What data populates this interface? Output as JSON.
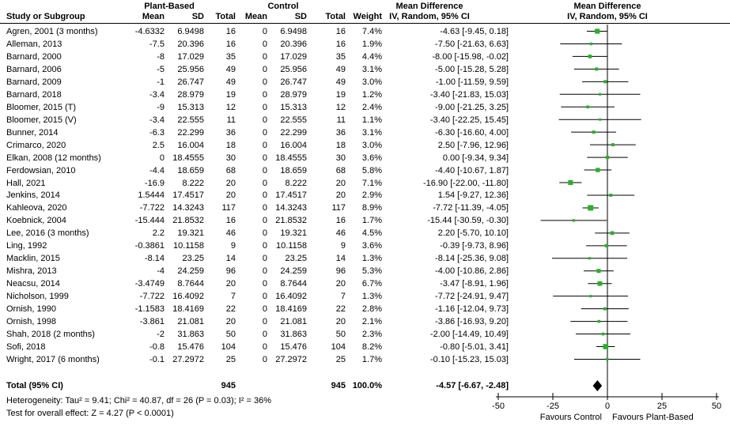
{
  "header": {
    "group1": "Plant-Based",
    "group2": "Control",
    "study_col": "Study or Subgroup",
    "mean": "Mean",
    "sd": "SD",
    "total": "Total",
    "weight": "Weight",
    "md_title": "Mean Difference",
    "md_sub": "IV, Random, 95% CI"
  },
  "rows": [
    {
      "study": "Agren, 2001 (3 months)",
      "mean1": "-4.6332",
      "sd1": "6.9498",
      "total1": "16",
      "mean2": "0",
      "sd2": "6.9498",
      "total2": "16",
      "weight": "7.4%",
      "ci": "-4.63 [-9.45, 0.18]"
    },
    {
      "study": "Alleman, 2013",
      "mean1": "-7.5",
      "sd1": "20.396",
      "total1": "16",
      "mean2": "0",
      "sd2": "20.396",
      "total2": "16",
      "weight": "1.9%",
      "ci": "-7.50 [-21.63, 6.63]"
    },
    {
      "study": "Barnard, 2000",
      "mean1": "-8",
      "sd1": "17.029",
      "total1": "35",
      "mean2": "0",
      "sd2": "17.029",
      "total2": "35",
      "weight": "4.4%",
      "ci": "-8.00 [-15.98, -0.02]"
    },
    {
      "study": "Barnard, 2006",
      "mean1": "-5",
      "sd1": "25.956",
      "total1": "49",
      "mean2": "0",
      "sd2": "25.956",
      "total2": "49",
      "weight": "3.1%",
      "ci": "-5.00 [-15.28, 5.28]"
    },
    {
      "study": "Barnard, 2009",
      "mean1": "-1",
      "sd1": "26.747",
      "total1": "49",
      "mean2": "0",
      "sd2": "26.747",
      "total2": "49",
      "weight": "3.0%",
      "ci": "-1.00 [-11.59, 9.59]"
    },
    {
      "study": "Barnard, 2018",
      "mean1": "-3.4",
      "sd1": "28.979",
      "total1": "19",
      "mean2": "0",
      "sd2": "28.979",
      "total2": "19",
      "weight": "1.2%",
      "ci": "-3.40 [-21.83, 15.03]"
    },
    {
      "study": "Bloomer, 2015 (T)",
      "mean1": "-9",
      "sd1": "15.313",
      "total1": "12",
      "mean2": "0",
      "sd2": "15.313",
      "total2": "12",
      "weight": "2.4%",
      "ci": "-9.00 [-21.25, 3.25]"
    },
    {
      "study": "Bloomer, 2015 (V)",
      "mean1": "-3.4",
      "sd1": "22.555",
      "total1": "11",
      "mean2": "0",
      "sd2": "22.555",
      "total2": "11",
      "weight": "1.1%",
      "ci": "-3.40 [-22.25, 15.45]"
    },
    {
      "study": "Bunner, 2014",
      "mean1": "-6.3",
      "sd1": "22.299",
      "total1": "36",
      "mean2": "0",
      "sd2": "22.299",
      "total2": "36",
      "weight": "3.1%",
      "ci": "-6.30 [-16.60, 4.00]"
    },
    {
      "study": "Crimarco, 2020",
      "mean1": "2.5",
      "sd1": "16.004",
      "total1": "18",
      "mean2": "0",
      "sd2": "16.004",
      "total2": "18",
      "weight": "3.0%",
      "ci": "2.50 [-7.96, 12.96]"
    },
    {
      "study": "Elkan, 2008 (12 months)",
      "mean1": "0",
      "sd1": "18.4555",
      "total1": "30",
      "mean2": "0",
      "sd2": "18.4555",
      "total2": "30",
      "weight": "3.6%",
      "ci": "0.00 [-9.34, 9.34]"
    },
    {
      "study": "Ferdowsian, 2010",
      "mean1": "-4.4",
      "sd1": "18.659",
      "total1": "68",
      "mean2": "0",
      "sd2": "18.659",
      "total2": "68",
      "weight": "5.8%",
      "ci": "-4.40 [-10.67, 1.87]"
    },
    {
      "study": "Hall, 2021",
      "mean1": "-16.9",
      "sd1": "8.222",
      "total1": "20",
      "mean2": "0",
      "sd2": "8.222",
      "total2": "20",
      "weight": "7.1%",
      "ci": "-16.90 [-22.00, -11.80]"
    },
    {
      "study": "Jenkins, 2014",
      "mean1": "1.5444",
      "sd1": "17.4517",
      "total1": "20",
      "mean2": "0",
      "sd2": "17.4517",
      "total2": "20",
      "weight": "2.9%",
      "ci": "1.54 [-9.27, 12.36]"
    },
    {
      "study": "Kahleova, 2020",
      "mean1": "-7.722",
      "sd1": "14.3243",
      "total1": "117",
      "mean2": "0",
      "sd2": "14.3243",
      "total2": "117",
      "weight": "8.9%",
      "ci": "-7.72 [-11.39, -4.05]"
    },
    {
      "study": "Koebnick, 2004",
      "mean1": "-15.444",
      "sd1": "21.8532",
      "total1": "16",
      "mean2": "0",
      "sd2": "21.8532",
      "total2": "16",
      "weight": "1.7%",
      "ci": "-15.44 [-30.59, -0.30]"
    },
    {
      "study": "Lee, 2016 (3 months)",
      "mean1": "2.2",
      "sd1": "19.321",
      "total1": "46",
      "mean2": "0",
      "sd2": "19.321",
      "total2": "46",
      "weight": "4.5%",
      "ci": "2.20 [-5.70, 10.10]"
    },
    {
      "study": "Ling, 1992",
      "mean1": "-0.3861",
      "sd1": "10.1158",
      "total1": "9",
      "mean2": "0",
      "sd2": "10.1158",
      "total2": "9",
      "weight": "3.6%",
      "ci": "-0.39 [-9.73, 8.96]"
    },
    {
      "study": "Macklin, 2015",
      "mean1": "-8.14",
      "sd1": "23.25",
      "total1": "14",
      "mean2": "0",
      "sd2": "23.25",
      "total2": "14",
      "weight": "1.3%",
      "ci": "-8.14 [-25.36, 9.08]"
    },
    {
      "study": "Mishra, 2013",
      "mean1": "-4",
      "sd1": "24.259",
      "total1": "96",
      "mean2": "0",
      "sd2": "24.259",
      "total2": "96",
      "weight": "5.3%",
      "ci": "-4.00 [-10.86, 2.86]"
    },
    {
      "study": "Neacsu, 2014",
      "mean1": "-3.4749",
      "sd1": "8.7644",
      "total1": "20",
      "mean2": "0",
      "sd2": "8.7644",
      "total2": "20",
      "weight": "6.7%",
      "ci": "-3.47 [-8.91, 1.96]"
    },
    {
      "study": "Nicholson, 1999",
      "mean1": "-7.722",
      "sd1": "16.4092",
      "total1": "7",
      "mean2": "0",
      "sd2": "16.4092",
      "total2": "7",
      "weight": "1.3%",
      "ci": "-7.72 [-24.91, 9.47]"
    },
    {
      "study": "Ornish, 1990",
      "mean1": "-1.1583",
      "sd1": "18.4169",
      "total1": "22",
      "mean2": "0",
      "sd2": "18.4169",
      "total2": "22",
      "weight": "2.8%",
      "ci": "-1.16 [-12.04, 9.73]"
    },
    {
      "study": "Ornish, 1998",
      "mean1": "-3.861",
      "sd1": "21.081",
      "total1": "20",
      "mean2": "0",
      "sd2": "21.081",
      "total2": "20",
      "weight": "2.1%",
      "ci": "-3.86 [-16.93, 9.20]"
    },
    {
      "study": "Shah, 2018 (2 months)",
      "mean1": "-2",
      "sd1": "31.863",
      "total1": "50",
      "mean2": "0",
      "sd2": "31.863",
      "total2": "50",
      "weight": "2.3%",
      "ci": "-2.00 [-14.49, 10.49]"
    },
    {
      "study": "Sofi, 2018",
      "mean1": "-0.8",
      "sd1": "15.476",
      "total1": "104",
      "mean2": "0",
      "sd2": "15.476",
      "total2": "104",
      "weight": "8.2%",
      "ci": "-0.80 [-5.01, 3.41]"
    },
    {
      "study": "Wright, 2017 (6 months)",
      "mean1": "-0.1",
      "sd1": "27.2972",
      "total1": "25",
      "mean2": "0",
      "sd2": "27.2972",
      "total2": "25",
      "weight": "1.7%",
      "ci": "-0.10 [-15.23, 15.03]"
    }
  ],
  "total_row": {
    "label": "Total (95% CI)",
    "total1": "945",
    "total2": "945",
    "weight": "100.0%",
    "ci": "-4.57 [-6.67, -2.48]"
  },
  "footer": {
    "heterogeneity": "Heterogeneity: Tau² = 9.41; Chi² = 40.87, df = 26 (P = 0.03); I² = 36%",
    "overall_effect": "Test for overall effect: Z = 4.27 (P < 0.0001)"
  },
  "chart_data": {
    "type": "forest",
    "title": "Mean Difference",
    "subtitle": "IV, Random, 95% CI",
    "xlim": [
      -50,
      50
    ],
    "ticks": [
      "-50",
      "-25",
      "0",
      "25",
      "50"
    ],
    "tick_values": [
      -50,
      -25,
      0,
      25,
      50
    ],
    "xlabel_left": "Favours Control",
    "xlabel_right": "Favours Plant-Based",
    "marker_color": "#27B227",
    "line_color": "#000000",
    "diamond_color": "#000000",
    "studies": [
      {
        "name": "Agren, 2001 (3 months)",
        "est": -4.63,
        "lo": -9.45,
        "hi": 0.18,
        "weight": 7.4
      },
      {
        "name": "Alleman, 2013",
        "est": -7.5,
        "lo": -21.63,
        "hi": 6.63,
        "weight": 1.9
      },
      {
        "name": "Barnard, 2000",
        "est": -8.0,
        "lo": -15.98,
        "hi": -0.02,
        "weight": 4.4
      },
      {
        "name": "Barnard, 2006",
        "est": -5.0,
        "lo": -15.28,
        "hi": 5.28,
        "weight": 3.1
      },
      {
        "name": "Barnard, 2009",
        "est": -1.0,
        "lo": -11.59,
        "hi": 9.59,
        "weight": 3.0
      },
      {
        "name": "Barnard, 2018",
        "est": -3.4,
        "lo": -21.83,
        "hi": 15.03,
        "weight": 1.2
      },
      {
        "name": "Bloomer, 2015 (T)",
        "est": -9.0,
        "lo": -21.25,
        "hi": 3.25,
        "weight": 2.4
      },
      {
        "name": "Bloomer, 2015 (V)",
        "est": -3.4,
        "lo": -22.25,
        "hi": 15.45,
        "weight": 1.1
      },
      {
        "name": "Bunner, 2014",
        "est": -6.3,
        "lo": -16.6,
        "hi": 4.0,
        "weight": 3.1
      },
      {
        "name": "Crimarco, 2020",
        "est": 2.5,
        "lo": -7.96,
        "hi": 12.96,
        "weight": 3.0
      },
      {
        "name": "Elkan, 2008 (12 months)",
        "est": 0.0,
        "lo": -9.34,
        "hi": 9.34,
        "weight": 3.6
      },
      {
        "name": "Ferdowsian, 2010",
        "est": -4.4,
        "lo": -10.67,
        "hi": 1.87,
        "weight": 5.8
      },
      {
        "name": "Hall, 2021",
        "est": -16.9,
        "lo": -22.0,
        "hi": -11.8,
        "weight": 7.1
      },
      {
        "name": "Jenkins, 2014",
        "est": 1.54,
        "lo": -9.27,
        "hi": 12.36,
        "weight": 2.9
      },
      {
        "name": "Kahleova, 2020",
        "est": -7.72,
        "lo": -11.39,
        "hi": -4.05,
        "weight": 8.9
      },
      {
        "name": "Koebnick, 2004",
        "est": -15.44,
        "lo": -30.59,
        "hi": -0.3,
        "weight": 1.7
      },
      {
        "name": "Lee, 2016 (3 months)",
        "est": 2.2,
        "lo": -5.7,
        "hi": 10.1,
        "weight": 4.5
      },
      {
        "name": "Ling, 1992",
        "est": -0.39,
        "lo": -9.73,
        "hi": 8.96,
        "weight": 3.6
      },
      {
        "name": "Macklin, 2015",
        "est": -8.14,
        "lo": -25.36,
        "hi": 9.08,
        "weight": 1.3
      },
      {
        "name": "Mishra, 2013",
        "est": -4.0,
        "lo": -10.86,
        "hi": 2.86,
        "weight": 5.3
      },
      {
        "name": "Neacsu, 2014",
        "est": -3.47,
        "lo": -8.91,
        "hi": 1.96,
        "weight": 6.7
      },
      {
        "name": "Nicholson, 1999",
        "est": -7.72,
        "lo": -24.91,
        "hi": 9.47,
        "weight": 1.3
      },
      {
        "name": "Ornish, 1990",
        "est": -1.16,
        "lo": -12.04,
        "hi": 9.73,
        "weight": 2.8
      },
      {
        "name": "Ornish, 1998",
        "est": -3.86,
        "lo": -16.93,
        "hi": 9.2,
        "weight": 2.1
      },
      {
        "name": "Shah, 2018 (2 months)",
        "est": -2.0,
        "lo": -14.49,
        "hi": 10.49,
        "weight": 2.3
      },
      {
        "name": "Sofi, 2018",
        "est": -0.8,
        "lo": -5.01,
        "hi": 3.41,
        "weight": 8.2
      },
      {
        "name": "Wright, 2017 (6 months)",
        "est": -0.1,
        "lo": -15.23,
        "hi": 15.03,
        "weight": 1.7
      }
    ],
    "total": {
      "label": "Total (95% CI)",
      "est": -4.57,
      "lo": -6.67,
      "hi": -2.48,
      "weight": 100.0
    }
  }
}
